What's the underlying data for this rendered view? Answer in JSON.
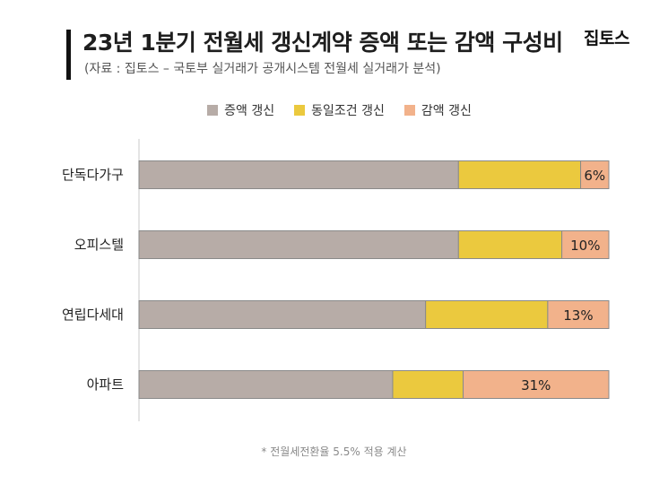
{
  "header": {
    "title": "23년 1분기 전월세 갱신계약 증액 또는 감액 구성비",
    "subtitle": "(자료 : 집토스 – 국토부 실거래가 공개시스템 전월세 실거래가 분석)",
    "logo": "집토스"
  },
  "footnote": "* 전월세전환율 5.5% 적용 계산",
  "colors": {
    "increase": "#b7aca7",
    "same": "#ebc93e",
    "decrease": "#f2b28b",
    "border": "#8a8a8a"
  },
  "chart_data": {
    "type": "bar",
    "orientation": "horizontal",
    "stacked": true,
    "percent_stacked": true,
    "categories": [
      "단독다가구",
      "오피스텔",
      "연립다세대",
      "아파트"
    ],
    "series": [
      {
        "name": "증액 갱신",
        "values": [
          68,
          68,
          61,
          54
        ]
      },
      {
        "name": "동일조건 갱신",
        "values": [
          26,
          22,
          26,
          15
        ]
      },
      {
        "name": "감액 갱신",
        "values": [
          6,
          10,
          13,
          31
        ]
      }
    ],
    "data_labels": [
      "6%",
      "10%",
      "13%",
      "31%"
    ],
    "title": "23년 1분기 전월세 갱신계약 증액 또는 감액 구성비",
    "xlim": [
      0,
      100
    ],
    "legend_position": "top",
    "grid": false
  }
}
